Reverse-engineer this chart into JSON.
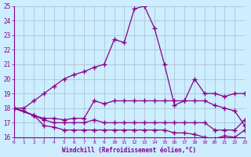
{
  "xlabel": "Windchill (Refroidissement éolien,°C)",
  "xlim": [
    0,
    23
  ],
  "ylim": [
    16,
    25
  ],
  "xticks": [
    0,
    1,
    2,
    3,
    4,
    5,
    6,
    7,
    8,
    9,
    10,
    11,
    12,
    13,
    14,
    15,
    16,
    17,
    18,
    19,
    20,
    21,
    22,
    23
  ],
  "yticks": [
    16,
    17,
    18,
    19,
    20,
    21,
    22,
    23,
    24,
    25
  ],
  "background_color": "#cceeff",
  "line_color": "#880088",
  "grid_color": "#aabbcc",
  "lines": [
    {
      "x": [
        0,
        1,
        2,
        3,
        4,
        5,
        6,
        7,
        8,
        9,
        10,
        11,
        12,
        13,
        14,
        15,
        16,
        17,
        18,
        19,
        20,
        21,
        22,
        23
      ],
      "y": [
        18.0,
        18.0,
        18.5,
        19.0,
        19.5,
        20.0,
        20.3,
        20.5,
        20.8,
        21.0,
        22.7,
        22.5,
        24.8,
        25.0,
        23.5,
        21.0,
        18.2,
        18.5,
        20.0,
        19.0,
        19.0,
        18.8,
        19.0,
        19.0
      ]
    },
    {
      "x": [
        0,
        1,
        2,
        3,
        4,
        5,
        6,
        7,
        8,
        9,
        10,
        11,
        12,
        13,
        14,
        15,
        16,
        17,
        18,
        19,
        20,
        21,
        22,
        23
      ],
      "y": [
        18.0,
        17.8,
        17.5,
        17.3,
        17.3,
        17.2,
        17.3,
        17.3,
        18.5,
        18.3,
        18.5,
        18.5,
        18.5,
        18.5,
        18.5,
        18.5,
        18.5,
        18.5,
        18.5,
        18.5,
        18.2,
        18.0,
        17.8,
        16.8
      ]
    },
    {
      "x": [
        0,
        2,
        3,
        4,
        5,
        6,
        7,
        8,
        9,
        10,
        11,
        12,
        13,
        14,
        15,
        16,
        17,
        18,
        19,
        20,
        21,
        22,
        23
      ],
      "y": [
        18.0,
        17.5,
        17.2,
        17.0,
        17.0,
        17.0,
        17.0,
        17.2,
        17.0,
        17.0,
        17.0,
        17.0,
        17.0,
        17.0,
        17.0,
        17.0,
        17.0,
        17.0,
        17.0,
        16.5,
        16.5,
        16.5,
        17.2
      ]
    },
    {
      "x": [
        0,
        2,
        3,
        4,
        5,
        6,
        7,
        8,
        9,
        10,
        11,
        12,
        13,
        14,
        15,
        16,
        17,
        18,
        19,
        20,
        21,
        22,
        23
      ],
      "y": [
        18.0,
        17.5,
        16.8,
        16.7,
        16.5,
        16.5,
        16.5,
        16.5,
        16.5,
        16.5,
        16.5,
        16.5,
        16.5,
        16.5,
        16.5,
        16.3,
        16.3,
        16.2,
        16.0,
        15.9,
        16.1,
        16.0,
        16.5
      ]
    }
  ]
}
